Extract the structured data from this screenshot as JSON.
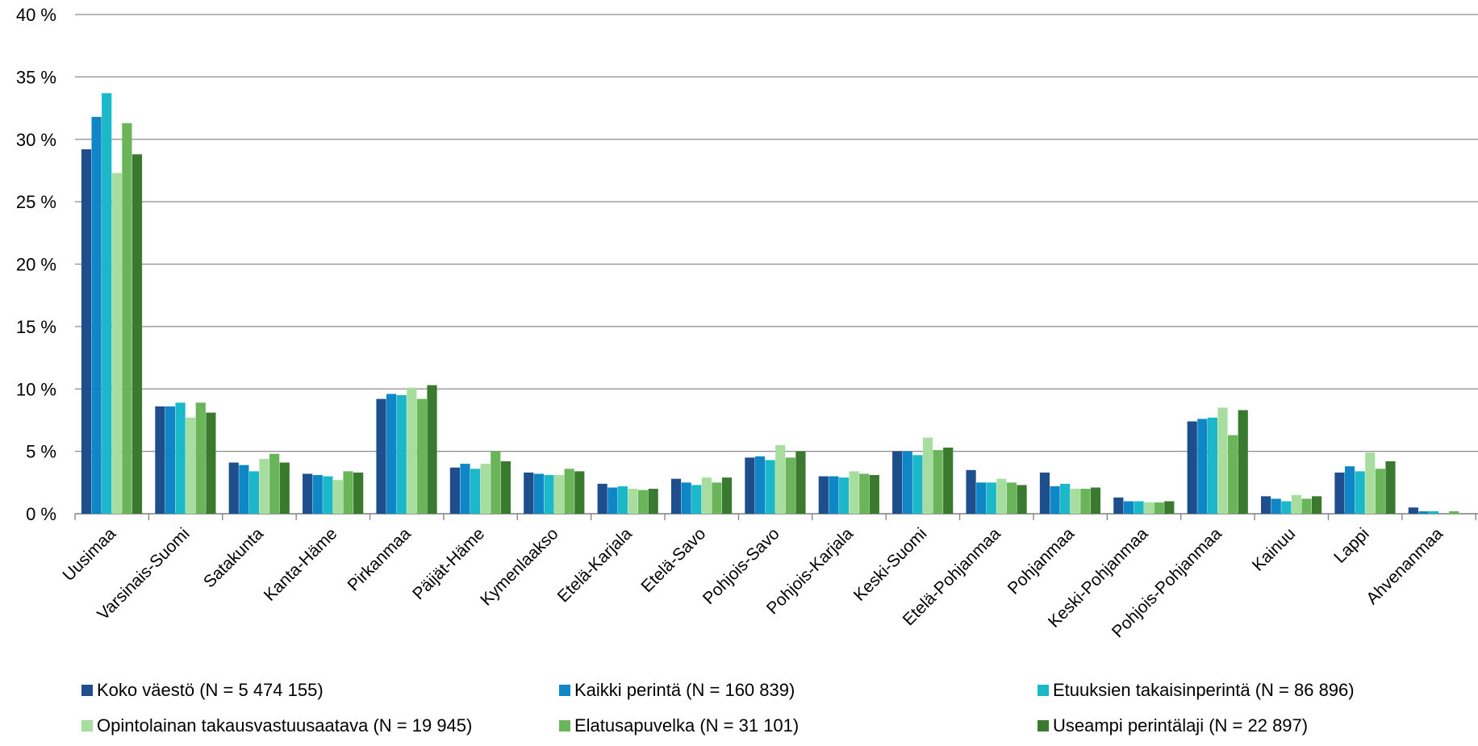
{
  "chart_data": {
    "type": "bar",
    "title": "",
    "xlabel": "",
    "ylabel": "",
    "ylim": [
      0,
      40
    ],
    "y_ticks": [
      "0 %",
      "5 %",
      "10 %",
      "15 %",
      "20 %",
      "25 %",
      "30 %",
      "35 %",
      "40 %"
    ],
    "grid": "horizontal",
    "legend_position": "bottom",
    "categories": [
      "Uusimaa",
      "Varsinais-Suomi",
      "Satakunta",
      "Kanta-Häme",
      "Pirkanmaa",
      "Päijät-Häme",
      "Kymenlaakso",
      "Etelä-Karjala",
      "Etelä-Savo",
      "Pohjois-Savo",
      "Pohjois-Karjala",
      "Keski-Suomi",
      "Etelä-Pohjanmaa",
      "Pohjanmaa",
      "Keski-Pohjanmaa",
      "Pohjois-Pohjanmaa",
      "Kainuu",
      "Lappi",
      "Ahvenanmaa"
    ],
    "series": [
      {
        "name": "Koko väestö (N = 5 474 155)",
        "color": "#1F4E8C",
        "values": [
          29.2,
          8.6,
          4.1,
          3.2,
          9.2,
          3.7,
          3.3,
          2.4,
          2.8,
          4.5,
          3.0,
          5.0,
          3.5,
          3.3,
          1.3,
          7.4,
          1.4,
          3.3,
          0.5
        ]
      },
      {
        "name": "Kaikki perintä (N = 160 839)",
        "color": "#0F86C6",
        "values": [
          31.8,
          8.6,
          3.9,
          3.1,
          9.6,
          4.0,
          3.2,
          2.1,
          2.5,
          4.6,
          3.0,
          5.0,
          2.5,
          2.2,
          1.0,
          7.6,
          1.2,
          3.8,
          0.2
        ]
      },
      {
        "name": "Etuuksien takaisinperintä (N = 86 896)",
        "color": "#1BB8CA",
        "values": [
          33.7,
          8.9,
          3.4,
          3.0,
          9.5,
          3.6,
          3.1,
          2.2,
          2.3,
          4.3,
          2.9,
          4.7,
          2.5,
          2.4,
          1.0,
          7.7,
          1.0,
          3.4,
          0.2
        ]
      },
      {
        "name": "Opintolainan takausvastuusaatava (N = 19 945)",
        "color": "#A8DDA0",
        "values": [
          27.3,
          7.7,
          4.4,
          2.7,
          10.1,
          4.0,
          3.1,
          2.0,
          2.9,
          5.5,
          3.4,
          6.1,
          2.8,
          2.0,
          0.9,
          8.5,
          1.5,
          4.9,
          0.0
        ]
      },
      {
        "name": "Elatusapuvelka (N = 31 101)",
        "color": "#6AB55A",
        "values": [
          31.3,
          8.9,
          4.8,
          3.4,
          9.2,
          5.0,
          3.6,
          1.9,
          2.5,
          4.5,
          3.2,
          5.1,
          2.5,
          2.0,
          0.9,
          6.3,
          1.2,
          3.6,
          0.2
        ]
      },
      {
        "name": "Useampi perintälaji (N = 22 897)",
        "color": "#3A7A2E",
        "values": [
          28.8,
          8.1,
          4.1,
          3.3,
          10.3,
          4.2,
          3.4,
          2.0,
          2.9,
          5.0,
          3.1,
          5.3,
          2.3,
          2.1,
          1.0,
          8.3,
          1.4,
          4.2,
          0.0
        ]
      }
    ]
  }
}
